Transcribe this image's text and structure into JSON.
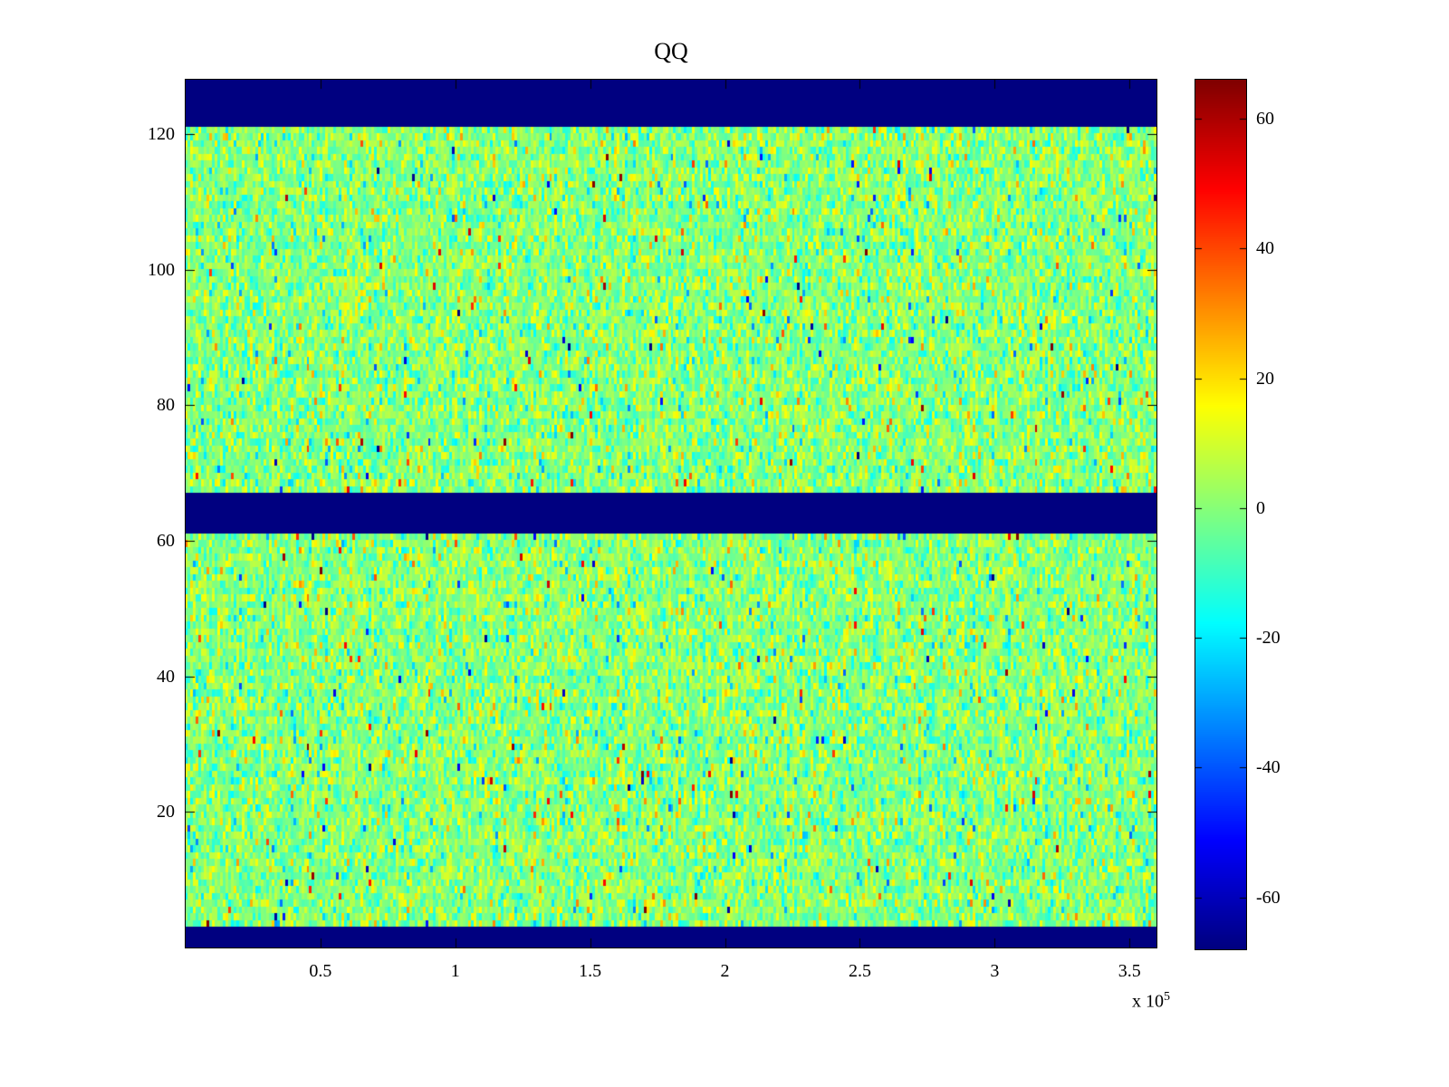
{
  "figure": {
    "background": "#ffffff",
    "axis_color": "#000000"
  },
  "chart_data": {
    "type": "heatmap",
    "title": "QQ",
    "xlabel": "",
    "ylabel": "",
    "x_range": [
      0,
      360000
    ],
    "y_range": [
      0,
      128
    ],
    "x_ticks": [
      {
        "value": 50000,
        "label": "0.5"
      },
      {
        "value": 100000,
        "label": "1"
      },
      {
        "value": 150000,
        "label": "1.5"
      },
      {
        "value": 200000,
        "label": "2"
      },
      {
        "value": 250000,
        "label": "2.5"
      },
      {
        "value": 300000,
        "label": "3"
      },
      {
        "value": 350000,
        "label": "3.5"
      }
    ],
    "x_multiplier_base": "x 10",
    "x_multiplier_exp": "5",
    "y_ticks": [
      {
        "value": 20,
        "label": "20"
      },
      {
        "value": 40,
        "label": "40"
      },
      {
        "value": 60,
        "label": "60"
      },
      {
        "value": 80,
        "label": "80"
      },
      {
        "value": 100,
        "label": "100"
      },
      {
        "value": 120,
        "label": "120"
      }
    ],
    "colormap": "jet",
    "clim": [
      -68,
      66
    ],
    "colorbar_position": "right",
    "colorbar_ticks": [
      {
        "value": 60,
        "label": "60"
      },
      {
        "value": 40,
        "label": "40"
      },
      {
        "value": 20,
        "label": "20"
      },
      {
        "value": 0,
        "label": "0"
      },
      {
        "value": -20,
        "label": "-20"
      },
      {
        "value": -40,
        "label": "-40"
      },
      {
        "value": -60,
        "label": "-60"
      }
    ],
    "grid_lines": false,
    "heatmap_model": {
      "description": "128-row noisy image, mostly values near 0 (green) with sparse cyan/orange outliers; solid minimum-value navy bands",
      "cols": 360,
      "rows": 128,
      "seed": 20,
      "noise_mean": 0,
      "noise_std": 9,
      "outlier_prob": 0.035,
      "outlier_scale": 3.2,
      "band_value": -68,
      "bands": [
        {
          "y_from": 121,
          "y_to": 128
        },
        {
          "y_from": 60.8,
          "y_to": 66.8
        },
        {
          "y_from": 0,
          "y_to": 3.2
        }
      ]
    }
  }
}
